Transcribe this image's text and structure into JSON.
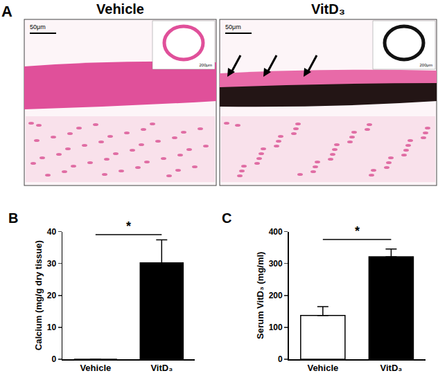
{
  "panel_a": {
    "label": "A",
    "images": [
      {
        "title": "Vehicle",
        "scale_bar": "50μm",
        "inset_scale_bar": "200μm"
      },
      {
        "title": "VitD₃",
        "scale_bar": "50μm",
        "inset_scale_bar": "200μm"
      }
    ]
  },
  "chart_data": [
    {
      "type": "bar",
      "annotations": [
        {
          "text": "B"
        },
        {
          "text": "*",
          "y": 39
        }
      ],
      "categories": [
        "Vehicle",
        "VitD₃"
      ],
      "values": [
        0,
        30.2
      ],
      "errors": [
        0,
        7.2
      ],
      "colors": [
        "#ffffff",
        "#000000"
      ],
      "y_label": "Calcium (mg/g dry tissue)",
      "ylim": [
        0,
        40
      ],
      "yticks": [
        0,
        10,
        20,
        30,
        40
      ],
      "grid": false
    },
    {
      "type": "bar",
      "annotations": [
        {
          "text": "C"
        },
        {
          "text": "*",
          "y": 375
        }
      ],
      "categories": [
        "Vehicle",
        "VitD₃"
      ],
      "values": [
        137,
        321
      ],
      "errors": [
        28,
        24
      ],
      "colors": [
        "#ffffff",
        "#000000"
      ],
      "y_label": "Serum VitD₃ (mg/ml)",
      "ylim": [
        0,
        400
      ],
      "yticks": [
        0,
        100,
        200,
        300,
        400
      ],
      "grid": false
    }
  ]
}
